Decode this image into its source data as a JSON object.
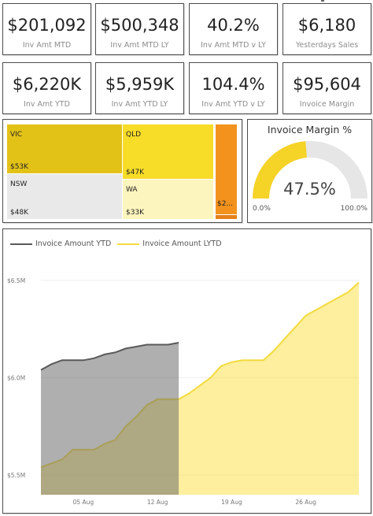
{
  "kpis": [
    {
      "value": "$201,092",
      "label": "Inv Amt MTD"
    },
    {
      "value": "$500,348",
      "label": "Inv Amt MTD LY"
    },
    {
      "value": "40.2%",
      "label": "Inv Amt MTD v LY"
    },
    {
      "value": "$6,180",
      "label": "Yesterdays Sales"
    },
    {
      "value": "$6,220K",
      "label": "Inv Amt YTD"
    },
    {
      "value": "$5,959K",
      "label": "Inv Amt YTD LY"
    },
    {
      "value": "104.4%",
      "label": "Inv Amt YTD v LY"
    },
    {
      "value": "$95,604",
      "label": "Invoice Margin"
    }
  ],
  "treemap": {
    "vic": {
      "name": "VIC",
      "value": "$53K"
    },
    "nsw": {
      "name": "NSW",
      "value": "$48K"
    },
    "qld": {
      "name": "QLD",
      "value": "$47K"
    },
    "wa": {
      "name": "WA",
      "value": "$33K"
    },
    "other": {
      "value": "$2..."
    }
  },
  "gauge": {
    "title": "Invoice Margin %",
    "value": 47.5,
    "value_label": "47.5%",
    "min_label": "0.0%",
    "max_label": "100.0%",
    "fill_color": "#F5D327",
    "track_color": "#E6E6E6"
  },
  "line_chart": {
    "legend": [
      {
        "name": "Invoice Amount YTD",
        "color": "#5A5A5A"
      },
      {
        "name": "Invoice Amount LYTD",
        "color": "#F2DB3C"
      }
    ]
  },
  "chart_data": {
    "type": "area",
    "y_ticks": [
      "$6.5M",
      "$6.0M",
      "$5.5M"
    ],
    "x_ticks": [
      "05 Aug",
      "12 Aug",
      "19 Aug",
      "26 Aug"
    ],
    "ylim": [
      5.5,
      6.5
    ],
    "series": [
      {
        "name": "Invoice Amount YTD",
        "x": [
          "01 Aug",
          "02 Aug",
          "03 Aug",
          "04 Aug",
          "05 Aug",
          "06 Aug",
          "07 Aug",
          "08 Aug",
          "09 Aug",
          "10 Aug",
          "11 Aug",
          "12 Aug",
          "13 Aug",
          "14 Aug"
        ],
        "values": [
          6.04,
          6.07,
          6.09,
          6.09,
          6.09,
          6.1,
          6.12,
          6.13,
          6.15,
          6.16,
          6.17,
          6.17,
          6.17,
          6.18
        ]
      },
      {
        "name": "Invoice Amount LYTD",
        "x": [
          "01 Aug",
          "02 Aug",
          "03 Aug",
          "04 Aug",
          "05 Aug",
          "06 Aug",
          "07 Aug",
          "08 Aug",
          "09 Aug",
          "10 Aug",
          "11 Aug",
          "12 Aug",
          "13 Aug",
          "14 Aug",
          "15 Aug",
          "16 Aug",
          "17 Aug",
          "18 Aug",
          "19 Aug",
          "20 Aug",
          "21 Aug",
          "22 Aug",
          "23 Aug",
          "24 Aug",
          "25 Aug",
          "26 Aug",
          "27 Aug",
          "28 Aug",
          "29 Aug",
          "30 Aug",
          "31 Aug"
        ],
        "values": [
          5.54,
          5.56,
          5.58,
          5.63,
          5.63,
          5.63,
          5.66,
          5.68,
          5.75,
          5.8,
          5.86,
          5.89,
          5.89,
          5.89,
          5.92,
          5.96,
          6.0,
          6.06,
          6.08,
          6.09,
          6.09,
          6.09,
          6.14,
          6.2,
          6.26,
          6.32,
          6.35,
          6.38,
          6.41,
          6.44,
          6.49
        ]
      }
    ]
  }
}
